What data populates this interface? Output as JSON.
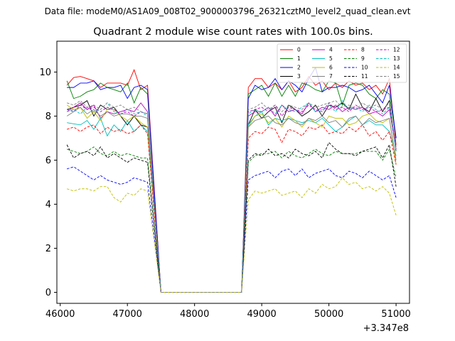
{
  "suptitle": "Data file: modeM0/AS1A09_008T02_9000003796_26321cztM0_level2_quad_clean.evt",
  "chart_data": {
    "type": "line",
    "title": "Quadrant 2 module wise count rates with 100.0s bins.",
    "xlabel": "",
    "ylabel": "",
    "x_offset_label": "+3.347e8",
    "xlim": [
      45950,
      51200
    ],
    "ylim": [
      -0.5,
      11.4
    ],
    "xticks": [
      46000,
      47000,
      48000,
      49000,
      50000,
      51000
    ],
    "xtick_labels": [
      "46000",
      "47000",
      "48000",
      "49000",
      "50000",
      "51000"
    ],
    "yticks": [
      0,
      2,
      4,
      6,
      8,
      10
    ],
    "ytick_labels": [
      "0",
      "2",
      "4",
      "6",
      "8",
      "10"
    ],
    "grid": false,
    "legend": {
      "placement": "top-right",
      "columns": 4
    },
    "x": [
      46100,
      46200,
      46300,
      46400,
      46500,
      46600,
      46700,
      46800,
      46900,
      47000,
      47100,
      47200,
      47300,
      47500,
      48700,
      48800,
      48900,
      49000,
      49100,
      49200,
      49300,
      49400,
      49500,
      49600,
      49700,
      49800,
      49900,
      50000,
      50100,
      50200,
      50300,
      50400,
      50500,
      50600,
      50700,
      50800,
      50900,
      51000
    ],
    "series": [
      {
        "name": "0",
        "color": "#ff0000",
        "dash": "solid",
        "values": [
          9.4,
          9.75,
          9.8,
          9.7,
          9.6,
          9.3,
          9.5,
          9.5,
          9.5,
          9.4,
          10.1,
          9.2,
          9.4,
          0,
          0,
          9.3,
          9.7,
          9.7,
          9.3,
          9.5,
          9.2,
          9.6,
          9.1,
          9.3,
          9.8,
          9.4,
          9.6,
          9.2,
          9.5,
          9.3,
          9.6,
          9.4,
          9.5,
          9.2,
          9.4,
          9.0,
          9.7,
          6.7
        ]
      },
      {
        "name": "1",
        "color": "#008000",
        "dash": "solid",
        "values": [
          9.6,
          8.8,
          8.9,
          9.1,
          9.2,
          9.5,
          9.3,
          9.2,
          9.1,
          9.5,
          8.6,
          9.3,
          9.0,
          0,
          0,
          9.0,
          9.2,
          9.4,
          8.9,
          9.5,
          8.9,
          9.4,
          8.9,
          9.5,
          9.4,
          9.2,
          9.1,
          9.6,
          9.5,
          8.5,
          9.4,
          9.5,
          9.4,
          9.0,
          8.8,
          9.2,
          9.0,
          7.0
        ]
      },
      {
        "name": "2",
        "color": "#0000ff",
        "dash": "solid",
        "values": [
          9.3,
          9.3,
          9.5,
          9.5,
          9.6,
          9.2,
          9.3,
          9.3,
          9.4,
          8.8,
          9.3,
          9.4,
          9.2,
          0,
          0,
          8.8,
          9.4,
          9.2,
          9.3,
          9.7,
          9.2,
          9.6,
          9.4,
          9.1,
          9.7,
          10.2,
          9.1,
          9.3,
          9.3,
          9.4,
          9.3,
          9.1,
          9.2,
          9.4,
          9.0,
          8.6,
          9.4,
          7.0
        ]
      },
      {
        "name": "3",
        "color": "#000000",
        "dash": "solid",
        "values": [
          8.3,
          8.4,
          8.5,
          8.7,
          8.0,
          8.5,
          8.3,
          8.4,
          8.0,
          7.6,
          8.0,
          7.6,
          7.5,
          0,
          0,
          7.6,
          8.3,
          7.9,
          8.2,
          8.4,
          7.7,
          8.5,
          8.3,
          8.0,
          8.2,
          8.5,
          8.0,
          8.5,
          8.4,
          8.6,
          8.3,
          9.0,
          8.4,
          8.2,
          8.8,
          8.2,
          8.7,
          6.4
        ]
      },
      {
        "name": "4",
        "color": "#bf00bf",
        "dash": "solid",
        "values": [
          8.2,
          8.4,
          8.6,
          8.3,
          8.5,
          7.9,
          8.2,
          8.1,
          8.2,
          8.3,
          8.2,
          8.6,
          8.2,
          0,
          0,
          8.0,
          8.2,
          8.2,
          8.4,
          8.0,
          8.5,
          8.2,
          8.3,
          8.1,
          8.6,
          8.2,
          8.4,
          8.3,
          8.5,
          8.2,
          8.4,
          8.3,
          8.4,
          8.1,
          8.2,
          8.0,
          8.3,
          6.5
        ]
      },
      {
        "name": "5",
        "color": "#00bfbf",
        "dash": "solid",
        "values": [
          7.7,
          7.65,
          7.6,
          7.8,
          7.4,
          7.9,
          7.1,
          7.6,
          7.3,
          7.8,
          7.3,
          7.6,
          7.3,
          0,
          0,
          7.6,
          8.0,
          8.2,
          7.6,
          7.9,
          7.8,
          7.9,
          7.8,
          7.7,
          7.8,
          7.7,
          7.9,
          7.6,
          7.3,
          7.5,
          7.8,
          8.0,
          7.6,
          7.8,
          7.6,
          7.6,
          7.3,
          6.2
        ]
      },
      {
        "name": "6",
        "color": "#bfbf00",
        "dash": "solid",
        "values": [
          8.5,
          8.3,
          8.4,
          7.9,
          8.2,
          7.8,
          8.3,
          8.3,
          8.0,
          7.8,
          8.0,
          7.7,
          7.5,
          0,
          0,
          7.5,
          8.0,
          8.1,
          7.7,
          7.9,
          7.5,
          8.0,
          7.8,
          7.5,
          7.9,
          7.7,
          7.5,
          8.0,
          7.9,
          7.9,
          7.6,
          7.7,
          8.0,
          8.1,
          7.8,
          7.7,
          7.9,
          5.8
        ]
      },
      {
        "name": "7",
        "color": "#808080",
        "dash": "solid",
        "values": [
          8.0,
          8.2,
          8.4,
          8.1,
          8.3,
          8.0,
          8.2,
          8.0,
          8.1,
          8.1,
          8.0,
          8.0,
          7.9,
          0,
          0,
          7.5,
          7.8,
          7.9,
          8.0,
          7.7,
          7.6,
          7.9,
          7.7,
          7.6,
          7.9,
          7.8,
          8.0,
          7.7,
          7.8,
          7.5,
          7.9,
          8.0,
          7.6,
          7.9,
          7.7,
          7.8,
          7.9,
          6.0
        ]
      },
      {
        "name": "8",
        "color": "#ff0000",
        "dash": "dashed",
        "values": [
          7.4,
          7.5,
          7.3,
          7.5,
          7.6,
          7.2,
          7.5,
          7.3,
          7.4,
          7.2,
          7.3,
          7.6,
          7.2,
          0,
          0,
          7.0,
          7.3,
          7.2,
          7.5,
          7.4,
          6.8,
          7.4,
          7.3,
          7.1,
          7.5,
          7.4,
          7.6,
          7.2,
          7.3,
          7.2,
          7.5,
          7.3,
          7.6,
          7.1,
          7.3,
          6.9,
          7.3,
          5.8
        ]
      },
      {
        "name": "9",
        "color": "#008000",
        "dash": "dashed",
        "values": [
          6.5,
          6.4,
          6.3,
          6.4,
          6.6,
          6.3,
          6.2,
          6.4,
          6.2,
          6.3,
          6.2,
          6.1,
          6.1,
          0,
          0,
          5.9,
          6.2,
          6.3,
          6.3,
          6.4,
          6.1,
          6.4,
          6.2,
          6.1,
          6.3,
          6.5,
          6.3,
          6.2,
          6.4,
          6.3,
          6.3,
          6.3,
          6.4,
          6.4,
          6.4,
          6.0,
          6.5,
          5.2
        ]
      },
      {
        "name": "10",
        "color": "#0000ff",
        "dash": "dashed",
        "values": [
          5.6,
          5.7,
          5.5,
          5.3,
          5.1,
          5.3,
          5.1,
          5.0,
          4.9,
          5.0,
          5.2,
          5.1,
          5.0,
          0,
          0,
          5.1,
          5.3,
          5.4,
          5.5,
          5.2,
          5.5,
          5.6,
          5.3,
          5.6,
          5.2,
          5.4,
          5.5,
          5.6,
          5.3,
          5.2,
          5.5,
          5.4,
          5.2,
          5.5,
          5.3,
          5.1,
          5.3,
          4.3
        ]
      },
      {
        "name": "11",
        "color": "#000000",
        "dash": "dashed",
        "values": [
          6.7,
          6.1,
          6.3,
          6.4,
          6.2,
          6.6,
          6.1,
          6.3,
          6.1,
          5.9,
          6.1,
          6.0,
          5.9,
          0,
          0,
          6.0,
          6.3,
          6.2,
          6.5,
          6.2,
          6.3,
          6.1,
          6.5,
          6.3,
          6.2,
          6.4,
          6.1,
          6.8,
          6.5,
          6.3,
          6.3,
          6.2,
          6.4,
          6.5,
          6.6,
          6.1,
          6.7,
          4.8
        ]
      },
      {
        "name": "12",
        "color": "#bf00bf",
        "dash": "dashed",
        "values": [
          8.3,
          8.2,
          8.5,
          8.3,
          8.4,
          8.2,
          8.4,
          8.3,
          8.1,
          8.2,
          8.0,
          8.2,
          8.1,
          0,
          0,
          8.2,
          8.3,
          8.4,
          8.2,
          8.5,
          8.0,
          8.4,
          8.3,
          8.2,
          8.5,
          8.3,
          8.2,
          8.6,
          8.3,
          8.4,
          8.2,
          8.5,
          8.3,
          8.4,
          8.2,
          8.3,
          8.4,
          6.6
        ]
      },
      {
        "name": "13",
        "color": "#00bfbf",
        "dash": "dashed",
        "values": [
          8.2,
          8.3,
          8.1,
          8.4,
          8.2,
          8.3,
          8.6,
          8.2,
          8.1,
          8.3,
          8.1,
          8.2,
          8.0,
          0,
          0,
          8.1,
          8.3,
          8.2,
          8.4,
          8.1,
          8.5,
          8.3,
          8.2,
          8.4,
          8.6,
          8.2,
          8.3,
          8.5,
          8.2,
          8.7,
          8.3,
          8.4,
          8.2,
          8.5,
          8.3,
          8.1,
          8.4,
          6.4
        ]
      },
      {
        "name": "14",
        "color": "#bfbf00",
        "dash": "dashed",
        "values": [
          4.7,
          4.6,
          4.7,
          4.7,
          4.6,
          4.8,
          4.8,
          4.3,
          4.1,
          4.5,
          4.4,
          4.7,
          4.6,
          0,
          0,
          4.2,
          4.6,
          4.5,
          4.6,
          4.7,
          4.4,
          4.5,
          4.6,
          4.3,
          4.7,
          4.5,
          4.9,
          4.7,
          4.8,
          5.2,
          4.9,
          5.0,
          4.7,
          4.8,
          4.6,
          4.8,
          4.5,
          3.5
        ]
      },
      {
        "name": "15",
        "color": "#808080",
        "dash": "dashed",
        "values": [
          8.6,
          8.5,
          8.7,
          8.4,
          8.5,
          8.3,
          8.6,
          8.4,
          8.5,
          8.3,
          8.4,
          8.2,
          8.1,
          0,
          0,
          8.3,
          8.4,
          8.6,
          8.3,
          8.5,
          8.2,
          8.5,
          8.4,
          8.3,
          8.6,
          8.4,
          8.5,
          8.6,
          8.7,
          8.4,
          8.5,
          8.3,
          8.6,
          8.4,
          8.5,
          8.3,
          8.6,
          6.6
        ]
      }
    ]
  }
}
